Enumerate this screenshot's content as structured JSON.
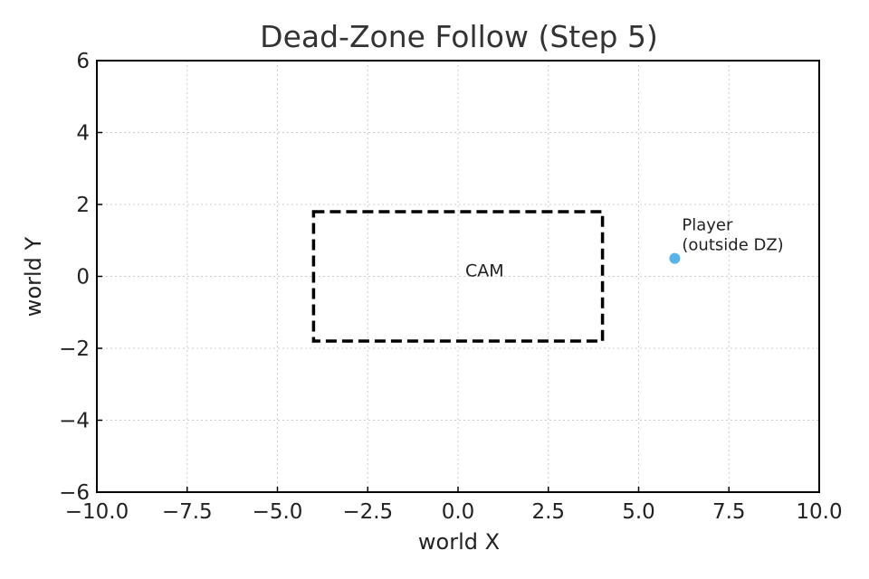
{
  "chart_data": {
    "type": "scatter",
    "title": "Dead-Zone Follow (Step 5)",
    "xlabel": "world X",
    "ylabel": "world Y",
    "xlim": [
      -10,
      10
    ],
    "ylim": [
      -6,
      6
    ],
    "x_ticks": [
      -10,
      -7.5,
      -5,
      -2.5,
      0,
      2.5,
      5,
      7.5,
      10
    ],
    "x_tick_labels": [
      "−10.0",
      "−7.5",
      "−5.0",
      "−2.5",
      "0.0",
      "2.5",
      "5.0",
      "7.5",
      "10.0"
    ],
    "y_ticks": [
      -6,
      -4,
      -2,
      0,
      2,
      4,
      6
    ],
    "y_tick_labels": [
      "−6",
      "−4",
      "−2",
      "0",
      "2",
      "4",
      "6"
    ],
    "grid": true,
    "dead_zone": {
      "x": [
        -4,
        4
      ],
      "y": [
        -1.8,
        1.8
      ],
      "label": "CAM",
      "color": "#000000",
      "style": "dashed"
    },
    "points": [
      {
        "x": 6,
        "y": 0.5,
        "color": "#56b4e9",
        "label_lines": [
          "Player",
          "(outside DZ)"
        ]
      }
    ],
    "colors": {
      "frame": "#000000",
      "grid": "#cccccc",
      "text": "#222222",
      "title": "#333333"
    }
  }
}
